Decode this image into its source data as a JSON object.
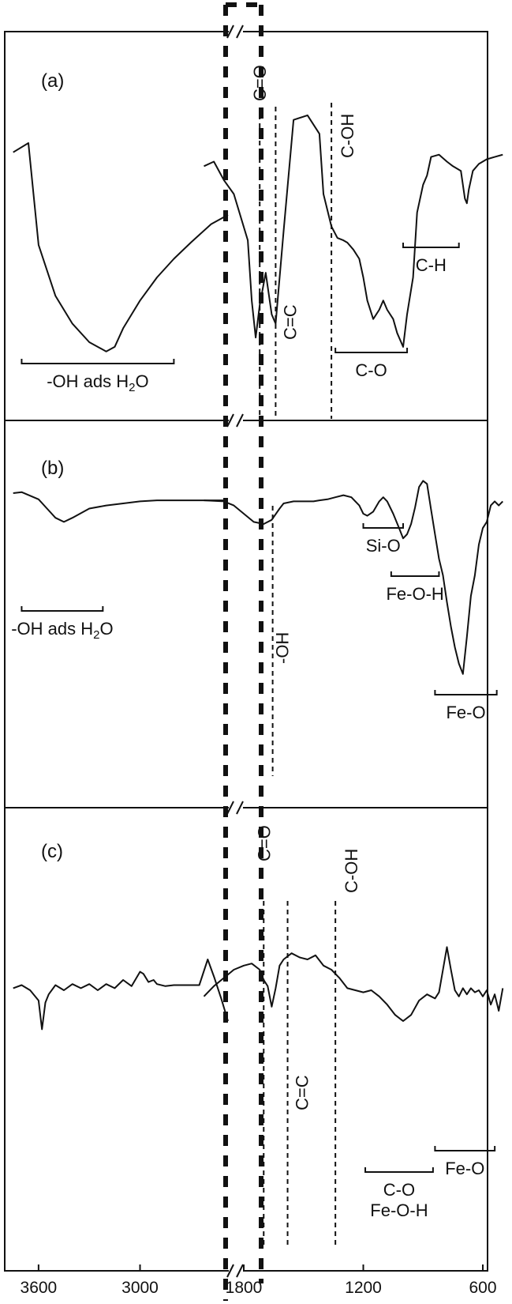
{
  "chart_data": {
    "type": "line",
    "title": "",
    "xlabel": "",
    "ylabel": "",
    "x_axis": {
      "reversed": true,
      "broken": true,
      "break_between": [
        2500,
        2000
      ],
      "ticks": [
        3600,
        3000,
        1800,
        1200,
        600
      ],
      "tick_labels": [
        "3600",
        "3000",
        "1800",
        "1200",
        "600"
      ]
    },
    "panels": [
      {
        "id": "a",
        "tag": "(a)",
        "series": [
          {
            "name": "",
            "x": [
              3750,
              3660,
              3600,
              3500,
              3400,
              3300,
              3200,
              3150,
              3100,
              3000,
              2900,
              2800,
              2700,
              2580,
              2480,
              2000,
              1950,
              1900,
              1850,
              1780,
              1760,
              1740,
              1720,
              1690,
              1660,
              1640,
              1600,
              1550,
              1480,
              1420,
              1400,
              1360,
              1330,
              1300,
              1280,
              1250,
              1220,
              1200,
              1180,
              1150,
              1120,
              1100,
              1080,
              1050,
              1030,
              1000,
              980,
              950,
              930,
              900,
              880,
              860,
              820,
              780,
              750,
              710,
              690,
              680,
              670,
              650,
              620,
              580,
              540,
              500
            ],
            "y": [
              0.82,
              0.86,
              0.42,
              0.2,
              0.08,
              0.0,
              -0.04,
              -0.02,
              0.06,
              0.18,
              0.28,
              0.36,
              0.43,
              0.51,
              0.55,
              0.76,
              0.78,
              0.7,
              0.64,
              0.44,
              0.18,
              0.02,
              0.16,
              0.3,
              0.12,
              0.08,
              0.48,
              0.96,
              0.98,
              0.9,
              0.64,
              0.5,
              0.45,
              0.44,
              0.43,
              0.4,
              0.36,
              0.28,
              0.18,
              0.1,
              0.14,
              0.18,
              0.14,
              0.1,
              0.04,
              -0.02,
              0.12,
              0.28,
              0.56,
              0.68,
              0.72,
              0.8,
              0.81,
              0.78,
              0.76,
              0.74,
              0.62,
              0.6,
              0.66,
              0.74,
              0.77,
              0.79,
              0.8,
              0.81
            ]
          }
        ],
        "marker_lines": [
          {
            "x": 1720,
            "label": "C=O"
          },
          {
            "x": 1640,
            "label": "C=C"
          },
          {
            "x": 1360,
            "label": "C-OH"
          }
        ],
        "range_labels": [
          {
            "x_from": 3700,
            "x_to": 2800,
            "label": "-OH ads H",
            "sub": "2",
            "tail": "O"
          },
          {
            "x_from": 1340,
            "x_to": 980,
            "label": "C-O"
          },
          {
            "x_from": 1000,
            "x_to": 720,
            "label": "C-H"
          }
        ]
      },
      {
        "id": "b",
        "tag": "(b)",
        "series": [
          {
            "name": "",
            "x": [
              3750,
              3700,
              3600,
              3550,
              3500,
              3450,
              3400,
              3300,
              3200,
              3100,
              3000,
              2900,
              2800,
              2700,
              2600,
              2480,
              2000,
              1900,
              1850,
              1800,
              1750,
              1700,
              1660,
              1620,
              1600,
              1550,
              1500,
              1450,
              1420,
              1380,
              1340,
              1300,
              1260,
              1220,
              1200,
              1180,
              1150,
              1120,
              1100,
              1080,
              1050,
              1020,
              1000,
              980,
              960,
              940,
              920,
              900,
              880,
              860,
              840,
              820,
              800,
              780,
              760,
              740,
              720,
              700,
              680,
              660,
              640,
              620,
              600,
              580,
              560,
              540,
              520,
              500
            ],
            "y": [
              0.7,
              0.71,
              0.64,
              0.55,
              0.46,
              0.42,
              0.46,
              0.55,
              0.58,
              0.6,
              0.62,
              0.63,
              0.63,
              0.63,
              0.63,
              0.63,
              0.63,
              0.62,
              0.58,
              0.5,
              0.42,
              0.4,
              0.44,
              0.55,
              0.6,
              0.62,
              0.62,
              0.62,
              0.63,
              0.64,
              0.66,
              0.68,
              0.66,
              0.58,
              0.5,
              0.48,
              0.52,
              0.62,
              0.66,
              0.62,
              0.5,
              0.36,
              0.26,
              0.3,
              0.4,
              0.56,
              0.76,
              0.82,
              0.79,
              0.54,
              0.3,
              0.06,
              -0.1,
              -0.36,
              -0.6,
              -0.8,
              -0.96,
              -1.06,
              -0.7,
              -0.3,
              -0.1,
              0.2,
              0.36,
              0.42,
              0.58,
              0.62,
              0.58,
              0.62
            ]
          }
        ],
        "marker_lines": [
          {
            "x": 1655,
            "label": "-OH"
          }
        ],
        "range_labels": [
          {
            "x_from": 3700,
            "x_to": 3220,
            "label": "-OH ads H",
            "sub": "2",
            "tail": "O"
          },
          {
            "x_from": 1200,
            "x_to": 1000,
            "label": "Si-O"
          },
          {
            "x_from": 1060,
            "x_to": 820,
            "label": "Fe-O-H"
          },
          {
            "x_from": 840,
            "x_to": 530,
            "label": "Fe-O"
          }
        ]
      },
      {
        "id": "c",
        "tag": "(c)",
        "series": [
          {
            "name": "",
            "x": [
              3750,
              3700,
              3650,
              3600,
              3580,
              3560,
              3540,
              3500,
              3450,
              3400,
              3350,
              3300,
              3250,
              3200,
              3150,
              3100,
              3050,
              3000,
              2980,
              2950,
              2920,
              2900,
              2850,
              2800,
              2750,
              2700,
              2650,
              2600,
              2560,
              2520,
              2480,
              2000,
              1950,
              1900,
              1850,
              1800,
              1760,
              1720,
              1700,
              1680,
              1660,
              1640,
              1620,
              1600,
              1560,
              1520,
              1480,
              1440,
              1400,
              1360,
              1320,
              1280,
              1240,
              1200,
              1160,
              1120,
              1080,
              1040,
              1000,
              960,
              920,
              880,
              860,
              840,
              820,
              800,
              780,
              760,
              740,
              720,
              700,
              680,
              660,
              640,
              620,
              600,
              580,
              560,
              540,
              520,
              500
            ],
            "y": [
              0.52,
              0.55,
              0.5,
              0.4,
              0.12,
              0.38,
              0.46,
              0.55,
              0.5,
              0.56,
              0.52,
              0.56,
              0.5,
              0.56,
              0.52,
              0.6,
              0.54,
              0.68,
              0.66,
              0.58,
              0.6,
              0.56,
              0.54,
              0.55,
              0.55,
              0.55,
              0.55,
              0.8,
              0.62,
              0.42,
              0.2,
              0.44,
              0.54,
              0.62,
              0.7,
              0.74,
              0.76,
              0.7,
              0.6,
              0.54,
              0.34,
              0.52,
              0.74,
              0.8,
              0.86,
              0.82,
              0.8,
              0.84,
              0.74,
              0.7,
              0.62,
              0.52,
              0.5,
              0.48,
              0.5,
              0.44,
              0.36,
              0.26,
              0.2,
              0.26,
              0.4,
              0.46,
              0.44,
              0.42,
              0.48,
              0.7,
              0.92,
              0.7,
              0.5,
              0.44,
              0.52,
              0.46,
              0.52,
              0.48,
              0.5,
              0.44,
              0.5,
              0.36,
              0.46,
              0.3,
              0.52
            ]
          }
        ],
        "marker_lines": [
          {
            "x": 1700,
            "label": "C=O"
          },
          {
            "x": 1580,
            "label": "C=C"
          },
          {
            "x": 1340,
            "label": "C-OH"
          }
        ],
        "range_labels": [
          {
            "x_from": 1190,
            "x_to": 850,
            "label": "C-O",
            "second": "Fe-O-H"
          },
          {
            "x_from": 840,
            "x_to": 540,
            "label": "Fe-O"
          }
        ]
      }
    ]
  }
}
